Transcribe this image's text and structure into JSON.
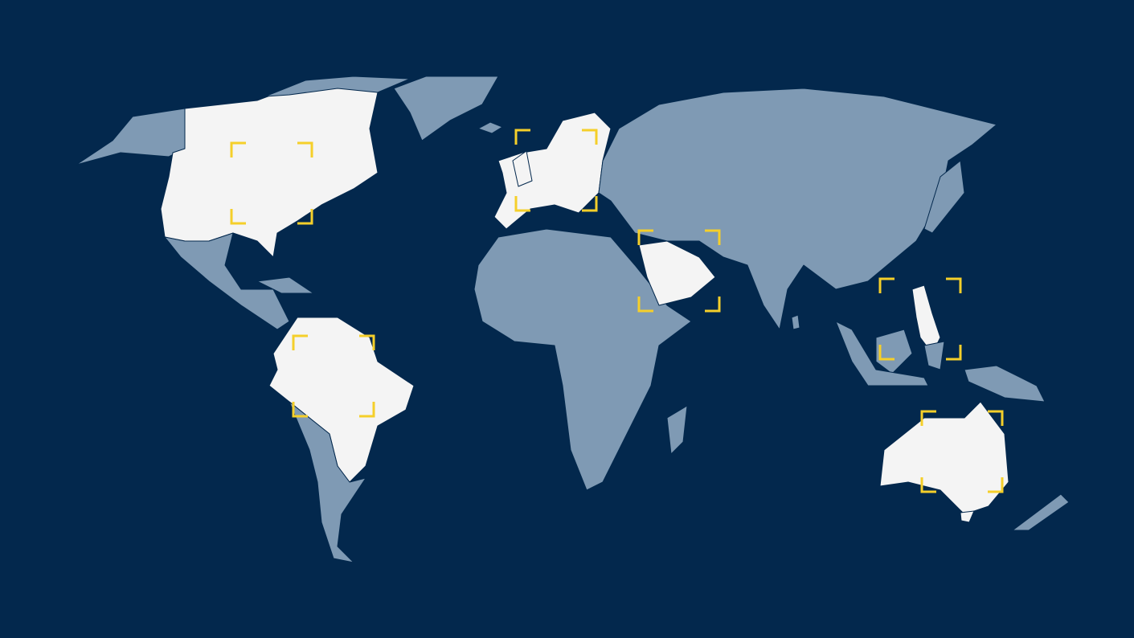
{
  "colors": {
    "ocean": "#03284d",
    "land": "#7f9ab4",
    "highlight": "#f4f4f4",
    "focus_bracket": "#f5cf2a"
  },
  "highlighted_regions": [
    "north-america",
    "south-america-north",
    "europe",
    "arabian-peninsula",
    "philippines",
    "australia"
  ]
}
